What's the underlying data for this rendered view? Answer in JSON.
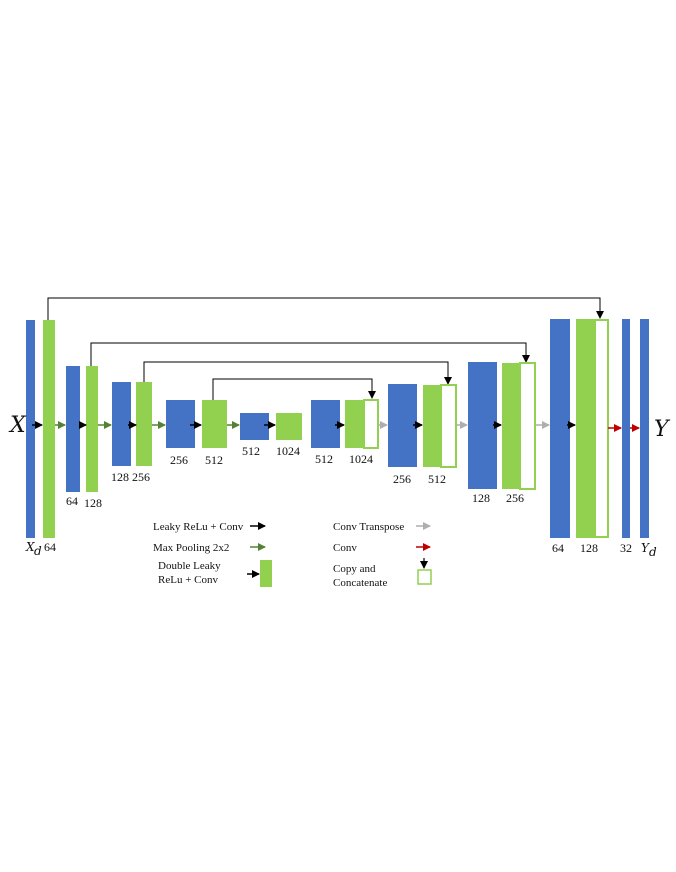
{
  "colors": {
    "blue": "#4472C4",
    "green": "#92D050",
    "black_arrow": "#000000",
    "pool_arrow": "#548235",
    "transpose_arrow": "#AEAEAE",
    "conv_arrow": "#C00000"
  },
  "input_label": "X",
  "output_label": "Y",
  "block_labels": {
    "xd": "X",
    "xd_sub": "d",
    "enc1": "64",
    "enc2_blue": "64",
    "enc2_green": "128",
    "enc3_blue": "128",
    "enc3_green": "256",
    "enc4_blue": "256",
    "enc4_green": "512",
    "bot_blue": "512",
    "bot_green": "1024",
    "dec1_blue": "512",
    "dec1_green": "1024",
    "dec2_blue": "256",
    "dec2_green": "512",
    "dec3_blue": "128",
    "dec3_green": "256",
    "dec4_blue": "64",
    "dec4_green": "128",
    "out32": "32",
    "yd": "Y",
    "yd_sub": "d"
  },
  "legend": {
    "leaky": "Leaky ReLu + Conv",
    "maxpool": "Max Pooling 2x2",
    "double_line1": "Double Leaky",
    "double_line2": "ReLu + Conv",
    "transpose": "Conv Transpose",
    "conv": "Conv",
    "copy_line1": "Copy and",
    "copy_line2": "Concatenate"
  }
}
